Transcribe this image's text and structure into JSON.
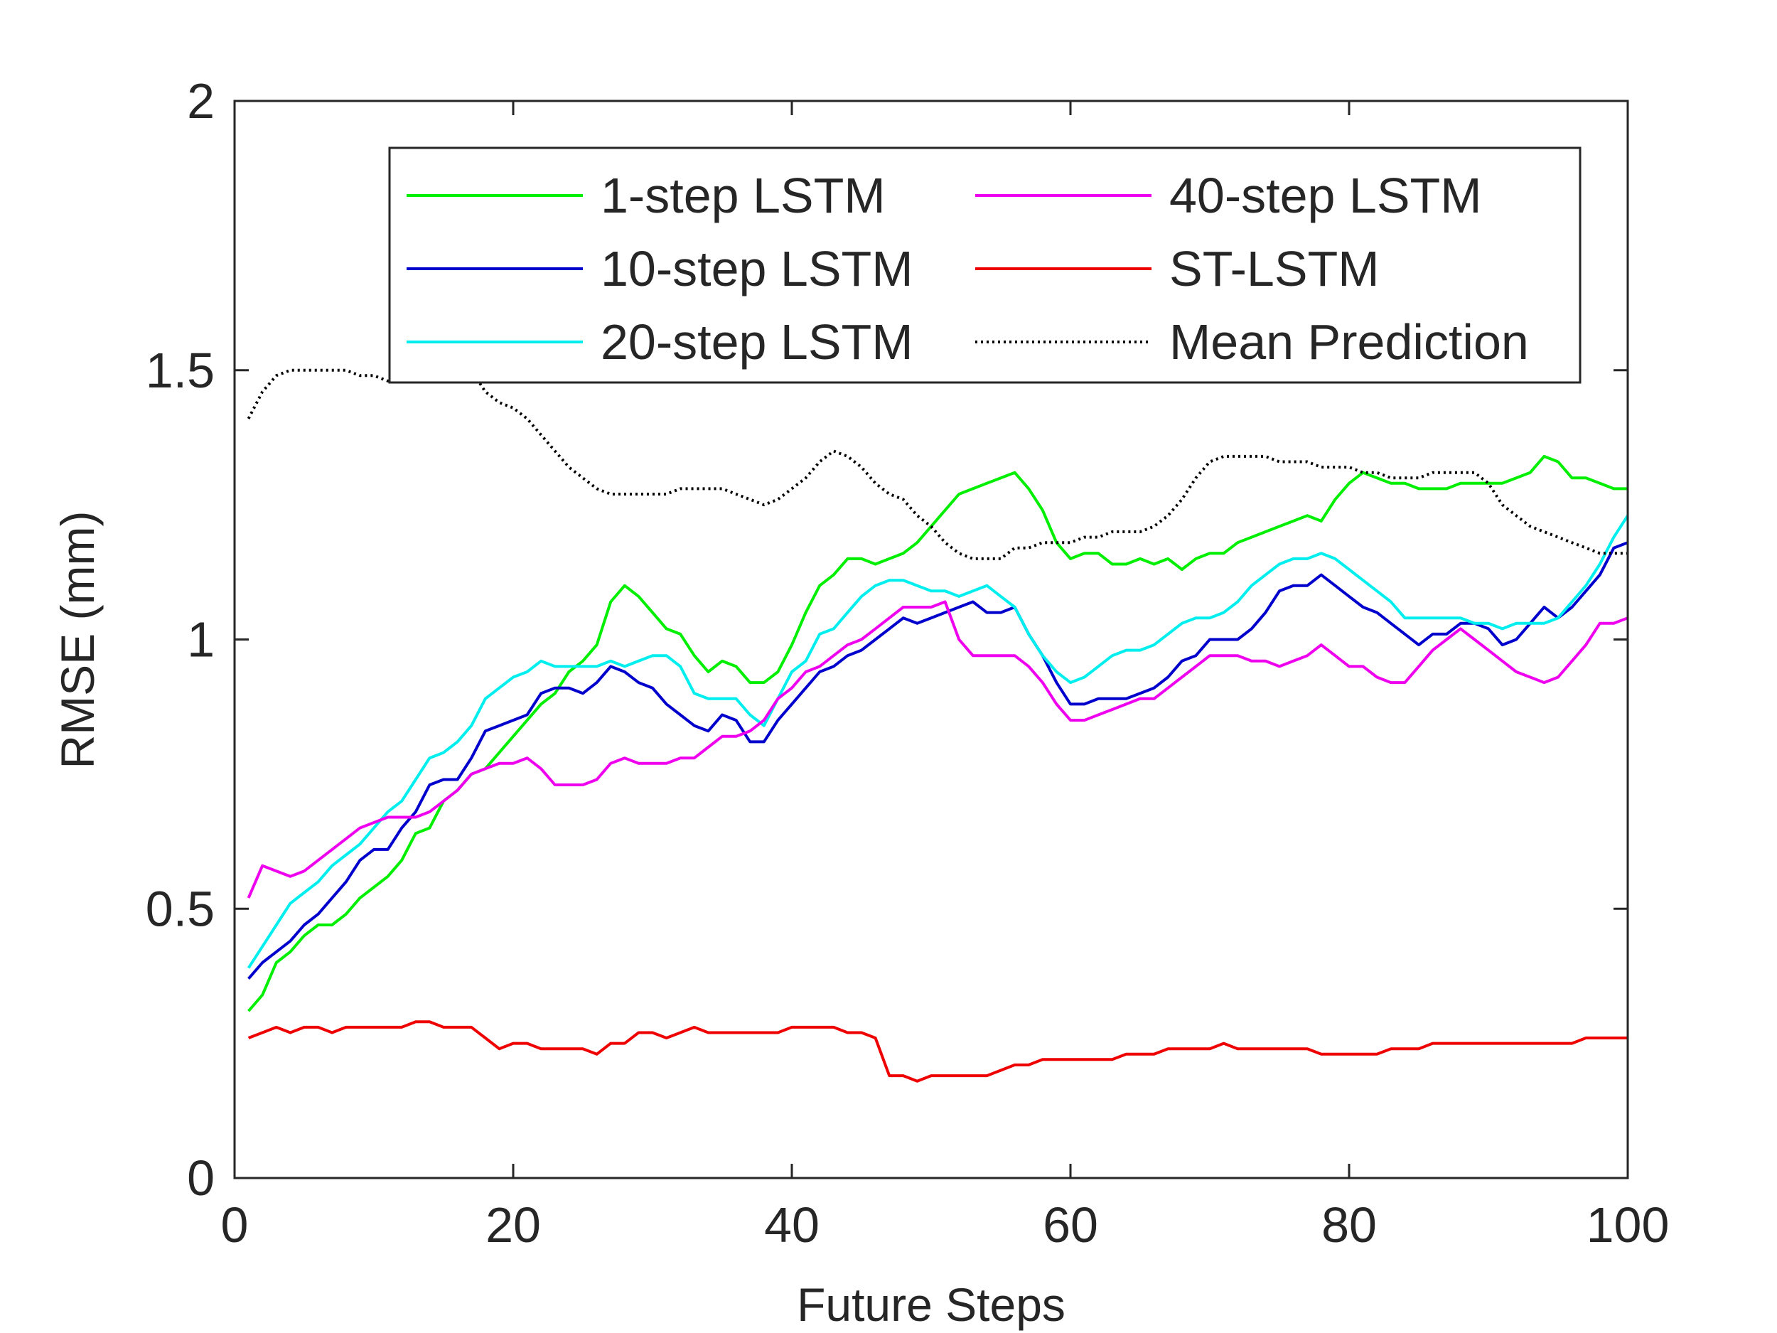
{
  "chart_data": {
    "type": "line",
    "title": "",
    "xlabel": "Future Steps",
    "ylabel": "RMSE (mm)",
    "xlim": [
      0,
      100
    ],
    "ylim": [
      0,
      2
    ],
    "xticks": [
      "0",
      "20",
      "40",
      "60",
      "80",
      "100"
    ],
    "yticks": [
      "0",
      "0.5",
      "1",
      "1.5",
      "2"
    ],
    "grid": false,
    "legend_position": "top-right",
    "x": [
      1,
      2,
      3,
      4,
      5,
      6,
      7,
      8,
      9,
      10,
      11,
      12,
      13,
      14,
      15,
      16,
      17,
      18,
      19,
      20,
      21,
      22,
      23,
      24,
      25,
      26,
      27,
      28,
      29,
      30,
      31,
      32,
      33,
      34,
      35,
      36,
      37,
      38,
      39,
      40,
      41,
      42,
      43,
      44,
      45,
      46,
      47,
      48,
      49,
      50,
      51,
      52,
      53,
      54,
      55,
      56,
      57,
      58,
      59,
      60,
      61,
      62,
      63,
      64,
      65,
      66,
      67,
      68,
      69,
      70,
      71,
      72,
      73,
      74,
      75,
      76,
      77,
      78,
      79,
      80,
      81,
      82,
      83,
      84,
      85,
      86,
      87,
      88,
      89,
      90,
      91,
      92,
      93,
      94,
      95,
      96,
      97,
      98,
      99,
      100
    ],
    "series": [
      {
        "name": "1-step LSTM",
        "color": "#00ee00",
        "dash": "",
        "values": [
          0.31,
          0.34,
          0.4,
          0.42,
          0.45,
          0.47,
          0.47,
          0.49,
          0.52,
          0.54,
          0.56,
          0.59,
          0.64,
          0.65,
          0.7,
          0.72,
          0.75,
          0.76,
          0.79,
          0.82,
          0.85,
          0.88,
          0.9,
          0.94,
          0.96,
          0.99,
          1.07,
          1.1,
          1.08,
          1.05,
          1.02,
          1.01,
          0.97,
          0.94,
          0.96,
          0.95,
          0.92,
          0.92,
          0.94,
          0.99,
          1.05,
          1.1,
          1.12,
          1.15,
          1.15,
          1.14,
          1.15,
          1.16,
          1.18,
          1.21,
          1.24,
          1.27,
          1.28,
          1.29,
          1.3,
          1.31,
          1.28,
          1.24,
          1.18,
          1.15,
          1.16,
          1.16,
          1.14,
          1.14,
          1.15,
          1.14,
          1.15,
          1.13,
          1.15,
          1.16,
          1.16,
          1.18,
          1.19,
          1.2,
          1.21,
          1.22,
          1.23,
          1.22,
          1.26,
          1.29,
          1.31,
          1.3,
          1.29,
          1.29,
          1.28,
          1.28,
          1.28,
          1.29,
          1.29,
          1.29,
          1.29,
          1.3,
          1.31,
          1.34,
          1.33,
          1.3,
          1.3,
          1.29,
          1.28,
          1.28
        ]
      },
      {
        "name": "10-step LSTM",
        "color": "#0000cc",
        "dash": "",
        "values": [
          0.37,
          0.4,
          0.42,
          0.44,
          0.47,
          0.49,
          0.52,
          0.55,
          0.59,
          0.61,
          0.61,
          0.65,
          0.68,
          0.73,
          0.74,
          0.74,
          0.78,
          0.83,
          0.84,
          0.85,
          0.86,
          0.9,
          0.91,
          0.91,
          0.9,
          0.92,
          0.95,
          0.94,
          0.92,
          0.91,
          0.88,
          0.86,
          0.84,
          0.83,
          0.86,
          0.85,
          0.81,
          0.81,
          0.85,
          0.88,
          0.91,
          0.94,
          0.95,
          0.97,
          0.98,
          1.0,
          1.02,
          1.04,
          1.03,
          1.04,
          1.05,
          1.06,
          1.07,
          1.05,
          1.05,
          1.06,
          1.01,
          0.97,
          0.92,
          0.88,
          0.88,
          0.89,
          0.89,
          0.89,
          0.9,
          0.91,
          0.93,
          0.96,
          0.97,
          1.0,
          1.0,
          1.0,
          1.02,
          1.05,
          1.09,
          1.1,
          1.1,
          1.12,
          1.1,
          1.08,
          1.06,
          1.05,
          1.03,
          1.01,
          0.99,
          1.01,
          1.01,
          1.03,
          1.03,
          1.02,
          0.99,
          1.0,
          1.03,
          1.06,
          1.04,
          1.06,
          1.09,
          1.12,
          1.17,
          1.18
        ]
      },
      {
        "name": "20-step LSTM",
        "color": "#00eeee",
        "dash": "",
        "values": [
          0.39,
          0.43,
          0.47,
          0.51,
          0.53,
          0.55,
          0.58,
          0.6,
          0.62,
          0.65,
          0.68,
          0.7,
          0.74,
          0.78,
          0.79,
          0.81,
          0.84,
          0.89,
          0.91,
          0.93,
          0.94,
          0.96,
          0.95,
          0.95,
          0.95,
          0.95,
          0.96,
          0.95,
          0.96,
          0.97,
          0.97,
          0.95,
          0.9,
          0.89,
          0.89,
          0.89,
          0.86,
          0.84,
          0.89,
          0.94,
          0.96,
          1.01,
          1.02,
          1.05,
          1.08,
          1.1,
          1.11,
          1.11,
          1.1,
          1.09,
          1.09,
          1.08,
          1.09,
          1.1,
          1.08,
          1.06,
          1.01,
          0.97,
          0.94,
          0.92,
          0.93,
          0.95,
          0.97,
          0.98,
          0.98,
          0.99,
          1.01,
          1.03,
          1.04,
          1.04,
          1.05,
          1.07,
          1.1,
          1.12,
          1.14,
          1.15,
          1.15,
          1.16,
          1.15,
          1.13,
          1.11,
          1.09,
          1.07,
          1.04,
          1.04,
          1.04,
          1.04,
          1.04,
          1.03,
          1.03,
          1.02,
          1.03,
          1.03,
          1.03,
          1.04,
          1.07,
          1.1,
          1.14,
          1.19,
          1.23
        ]
      },
      {
        "name": "40-step LSTM",
        "color": "#ee00ee",
        "dash": "",
        "values": [
          0.52,
          0.58,
          0.57,
          0.56,
          0.57,
          0.59,
          0.61,
          0.63,
          0.65,
          0.66,
          0.67,
          0.67,
          0.67,
          0.68,
          0.7,
          0.72,
          0.75,
          0.76,
          0.77,
          0.77,
          0.78,
          0.76,
          0.73,
          0.73,
          0.73,
          0.74,
          0.77,
          0.78,
          0.77,
          0.77,
          0.77,
          0.78,
          0.78,
          0.8,
          0.82,
          0.82,
          0.83,
          0.85,
          0.89,
          0.91,
          0.94,
          0.95,
          0.97,
          0.99,
          1.0,
          1.02,
          1.04,
          1.06,
          1.06,
          1.06,
          1.07,
          1.0,
          0.97,
          0.97,
          0.97,
          0.97,
          0.95,
          0.92,
          0.88,
          0.85,
          0.85,
          0.86,
          0.87,
          0.88,
          0.89,
          0.89,
          0.91,
          0.93,
          0.95,
          0.97,
          0.97,
          0.97,
          0.96,
          0.96,
          0.95,
          0.96,
          0.97,
          0.99,
          0.97,
          0.95,
          0.95,
          0.93,
          0.92,
          0.92,
          0.95,
          0.98,
          1.0,
          1.02,
          1.0,
          0.98,
          0.96,
          0.94,
          0.93,
          0.92,
          0.93,
          0.96,
          0.99,
          1.03,
          1.03,
          1.04
        ]
      },
      {
        "name": "ST-LSTM",
        "color": "#ee0000",
        "dash": "",
        "values": [
          0.26,
          0.27,
          0.28,
          0.27,
          0.28,
          0.28,
          0.27,
          0.28,
          0.28,
          0.28,
          0.28,
          0.28,
          0.29,
          0.29,
          0.28,
          0.28,
          0.28,
          0.26,
          0.24,
          0.25,
          0.25,
          0.24,
          0.24,
          0.24,
          0.24,
          0.23,
          0.25,
          0.25,
          0.27,
          0.27,
          0.26,
          0.27,
          0.28,
          0.27,
          0.27,
          0.27,
          0.27,
          0.27,
          0.27,
          0.28,
          0.28,
          0.28,
          0.28,
          0.27,
          0.27,
          0.26,
          0.19,
          0.19,
          0.18,
          0.19,
          0.19,
          0.19,
          0.19,
          0.19,
          0.2,
          0.21,
          0.21,
          0.22,
          0.22,
          0.22,
          0.22,
          0.22,
          0.22,
          0.23,
          0.23,
          0.23,
          0.24,
          0.24,
          0.24,
          0.24,
          0.25,
          0.24,
          0.24,
          0.24,
          0.24,
          0.24,
          0.24,
          0.23,
          0.23,
          0.23,
          0.23,
          0.23,
          0.24,
          0.24,
          0.24,
          0.25,
          0.25,
          0.25,
          0.25,
          0.25,
          0.25,
          0.25,
          0.25,
          0.25,
          0.25,
          0.25,
          0.26,
          0.26,
          0.26,
          0.26
        ]
      },
      {
        "name": "Mean Prediction",
        "color": "#000000",
        "dash": "3,5",
        "values": [
          1.41,
          1.46,
          1.49,
          1.5,
          1.5,
          1.5,
          1.5,
          1.5,
          1.49,
          1.49,
          1.48,
          1.48,
          1.49,
          1.5,
          1.5,
          1.5,
          1.5,
          1.46,
          1.44,
          1.43,
          1.41,
          1.38,
          1.35,
          1.32,
          1.3,
          1.28,
          1.27,
          1.27,
          1.27,
          1.27,
          1.27,
          1.28,
          1.28,
          1.28,
          1.28,
          1.27,
          1.26,
          1.25,
          1.26,
          1.28,
          1.3,
          1.33,
          1.35,
          1.34,
          1.32,
          1.29,
          1.27,
          1.26,
          1.23,
          1.21,
          1.18,
          1.16,
          1.15,
          1.15,
          1.15,
          1.17,
          1.17,
          1.18,
          1.18,
          1.18,
          1.19,
          1.19,
          1.2,
          1.2,
          1.2,
          1.21,
          1.23,
          1.26,
          1.3,
          1.33,
          1.34,
          1.34,
          1.34,
          1.34,
          1.33,
          1.33,
          1.33,
          1.32,
          1.32,
          1.32,
          1.31,
          1.31,
          1.3,
          1.3,
          1.3,
          1.31,
          1.31,
          1.31,
          1.31,
          1.29,
          1.25,
          1.23,
          1.21,
          1.2,
          1.19,
          1.18,
          1.17,
          1.16,
          1.16,
          1.16
        ]
      }
    ]
  }
}
